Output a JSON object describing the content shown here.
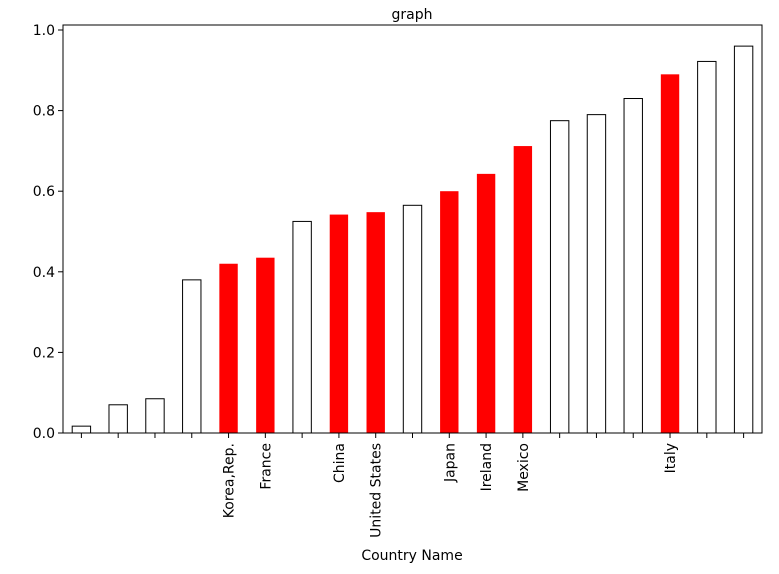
{
  "chart_data": {
    "type": "bar",
    "title": "graph",
    "xlabel": "Country Name",
    "ylabel": "",
    "ylim": [
      0,
      1.0
    ],
    "yticks": [
      "0.0",
      "0.2",
      "0.4",
      "0.6",
      "0.8",
      "1.0"
    ],
    "grid": false,
    "categories": [
      "",
      "",
      "",
      "",
      "Korea,Rep.",
      "France",
      "",
      "China",
      "United States",
      "",
      "Japan",
      "Ireland",
      "Mexico",
      "",
      "",
      "",
      "Italy",
      "",
      ""
    ],
    "values": [
      0.017,
      0.07,
      0.085,
      0.38,
      0.42,
      0.435,
      0.525,
      0.542,
      0.548,
      0.565,
      0.6,
      0.643,
      0.712,
      0.775,
      0.79,
      0.83,
      0.89,
      0.922,
      0.96
    ],
    "highlighted": [
      false,
      false,
      false,
      false,
      true,
      true,
      false,
      true,
      true,
      false,
      true,
      true,
      true,
      false,
      false,
      false,
      true,
      false,
      false
    ],
    "colors": {
      "highlight": "#ff0000",
      "default": "#ffffff",
      "edge": "#000000"
    }
  }
}
